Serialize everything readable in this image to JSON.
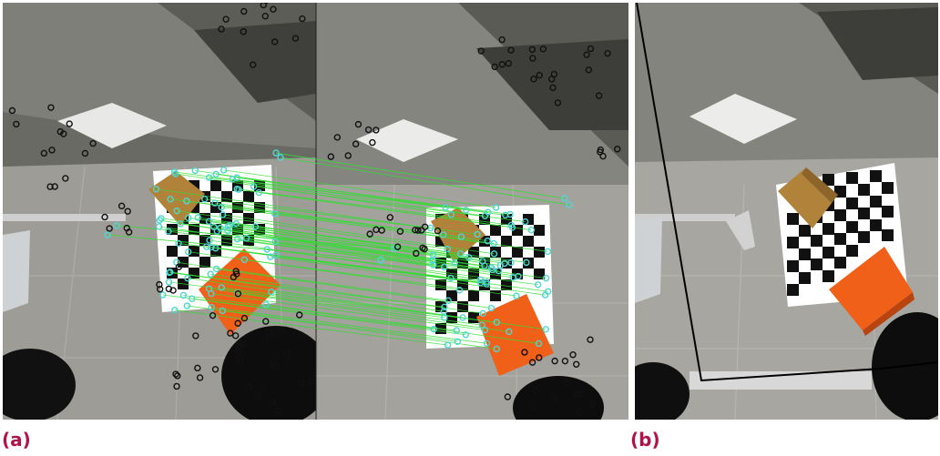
{
  "captions": {
    "a": "(a)",
    "b": "(b)"
  },
  "colors": {
    "caption": "#b0124a",
    "match_line": "#33dd33",
    "inlier_marker": "#4fd6d2",
    "keypoint_marker": "#111111",
    "floor": "#9c9b95",
    "table": "#8a8a84",
    "orange_box": "#f06018",
    "brown_box": "#b0823a"
  },
  "figure": {
    "panel_a": {
      "description_icon": "feature-matching-image"
    },
    "panel_b": {
      "description_icon": "warped-overlay-image"
    }
  }
}
